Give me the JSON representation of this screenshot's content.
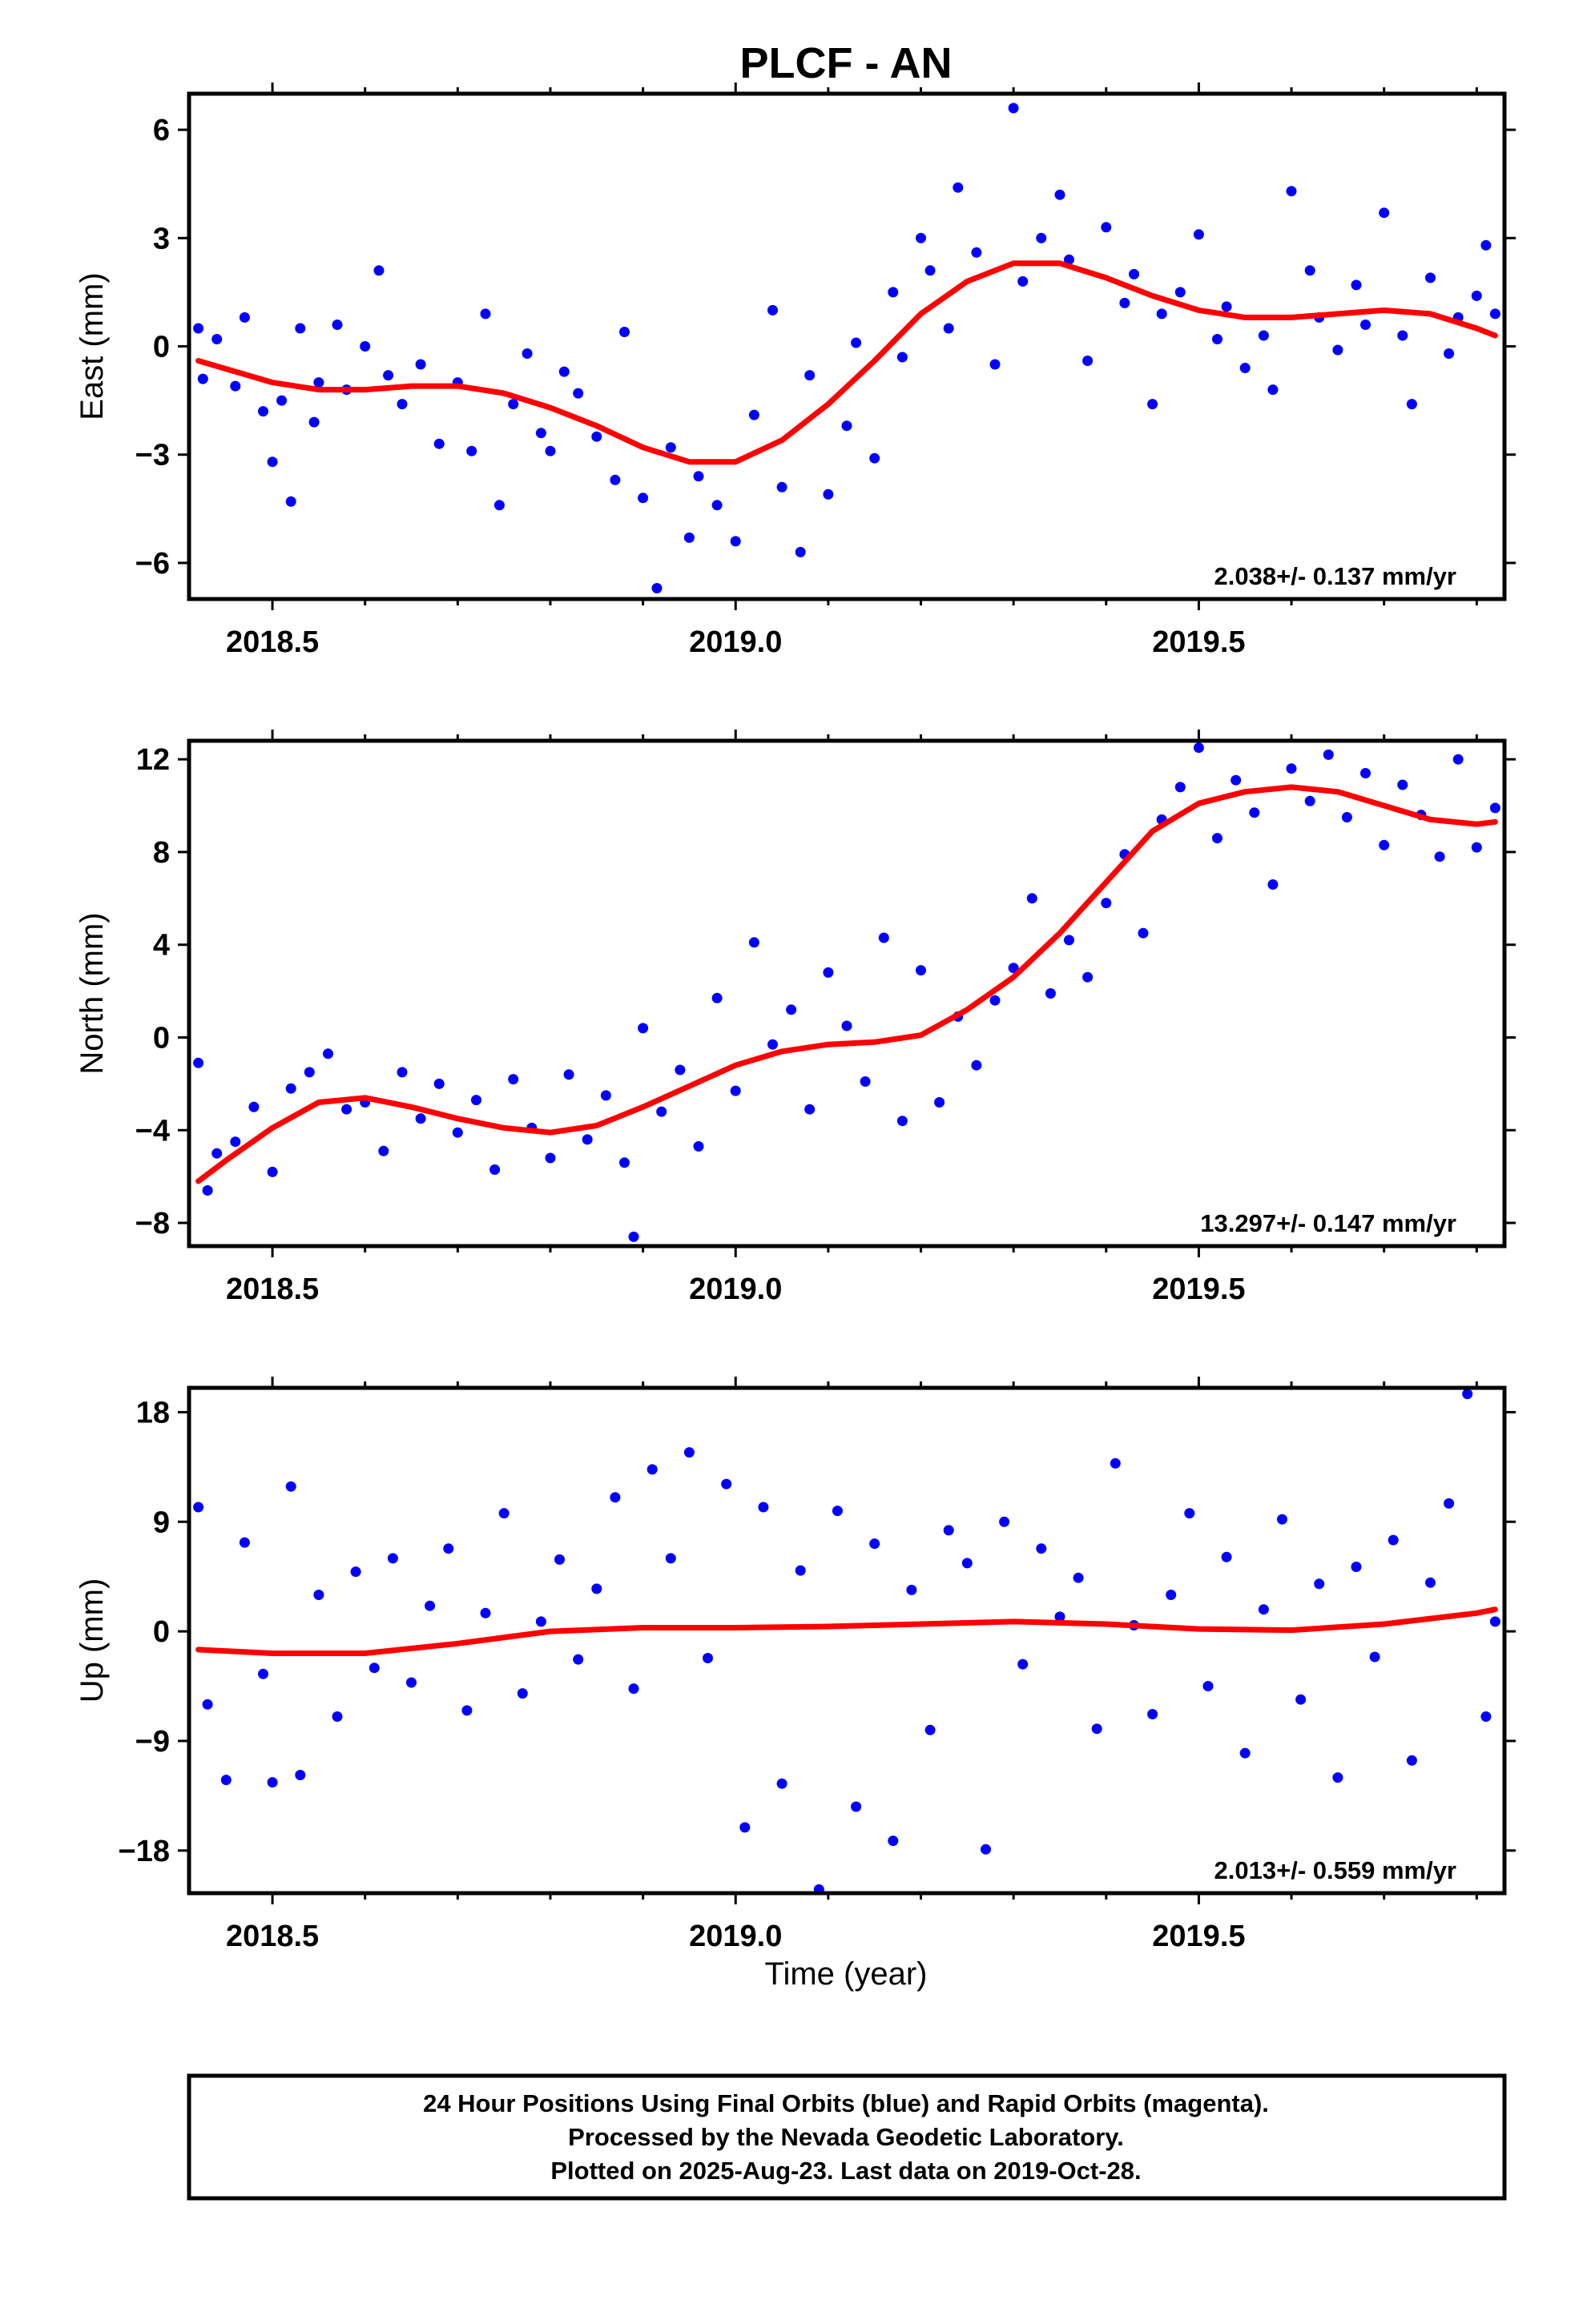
{
  "chart_data": {
    "type": "scatter",
    "title": "PLCF - AN",
    "xlabel": "Time (year)",
    "xlim": [
      2018.41,
      2019.83
    ],
    "x_ticks": [
      "2018.5",
      "2019.0",
      "2019.5"
    ],
    "series_colors": {
      "final_orbits": "#0000ff",
      "fit": "#ff0000"
    },
    "grid": false,
    "panels": [
      {
        "name": "east",
        "ylabel": "East (mm)",
        "ylim": [
          -7.0,
          7.0
        ],
        "y_ticks": [
          "6",
          "3",
          "0",
          "−3",
          "−6"
        ],
        "rate_text": "2.038+/- 0.137 mm/yr",
        "fit": {
          "x": [
            2018.42,
            2018.5,
            2018.55,
            2018.6,
            2018.65,
            2018.7,
            2018.75,
            2018.8,
            2018.85,
            2018.9,
            2018.95,
            2019.0,
            2019.05,
            2019.1,
            2019.15,
            2019.2,
            2019.25,
            2019.3,
            2019.35,
            2019.4,
            2019.45,
            2019.5,
            2019.55,
            2019.6,
            2019.65,
            2019.7,
            2019.75,
            2019.8,
            2019.82
          ],
          "y": [
            -0.4,
            -1.0,
            -1.2,
            -1.2,
            -1.1,
            -1.1,
            -1.3,
            -1.7,
            -2.2,
            -2.8,
            -3.2,
            -3.2,
            -2.6,
            -1.6,
            -0.4,
            0.9,
            1.8,
            2.3,
            2.3,
            1.9,
            1.4,
            1.0,
            0.8,
            0.8,
            0.9,
            1.0,
            0.9,
            0.5,
            0.3
          ]
        },
        "points": {
          "x": [
            2018.42,
            2018.425,
            2018.44,
            2018.46,
            2018.47,
            2018.49,
            2018.5,
            2018.51,
            2018.52,
            2018.53,
            2018.545,
            2018.55,
            2018.57,
            2018.58,
            2018.6,
            2018.615,
            2018.625,
            2018.64,
            2018.66,
            2018.68,
            2018.7,
            2018.715,
            2018.73,
            2018.745,
            2018.76,
            2018.775,
            2018.79,
            2018.8,
            2018.815,
            2018.83,
            2018.85,
            2018.87,
            2018.88,
            2018.9,
            2018.915,
            2018.93,
            2018.95,
            2018.96,
            2018.98,
            2019.0,
            2019.02,
            2019.04,
            2019.05,
            2019.07,
            2019.08,
            2019.1,
            2019.12,
            2019.13,
            2019.15,
            2019.17,
            2019.18,
            2019.2,
            2019.21,
            2019.23,
            2019.24,
            2019.26,
            2019.28,
            2019.3,
            2019.31,
            2019.33,
            2019.35,
            2019.36,
            2019.38,
            2019.4,
            2019.42,
            2019.43,
            2019.45,
            2019.46,
            2019.48,
            2019.5,
            2019.52,
            2019.53,
            2019.55,
            2019.57,
            2019.58,
            2019.6,
            2019.62,
            2019.63,
            2019.65,
            2019.67,
            2019.68,
            2019.7,
            2019.72,
            2019.73,
            2019.75,
            2019.77,
            2019.78,
            2019.8,
            2019.81,
            2019.82
          ],
          "y": [
            0.5,
            -0.9,
            0.2,
            -1.1,
            0.8,
            -1.8,
            -3.2,
            -1.5,
            -4.3,
            0.5,
            -2.1,
            -1.0,
            0.6,
            -1.2,
            0.0,
            2.1,
            -0.8,
            -1.6,
            -0.5,
            -2.7,
            -1.0,
            -2.9,
            0.9,
            -4.4,
            -1.6,
            -0.2,
            -2.4,
            -2.9,
            -0.7,
            -1.3,
            -2.5,
            -3.7,
            0.4,
            -4.2,
            -6.7,
            -2.8,
            -5.3,
            -3.6,
            -4.4,
            -5.4,
            -1.9,
            1.0,
            -3.9,
            -5.7,
            -0.8,
            -4.1,
            -2.2,
            0.1,
            -3.1,
            1.5,
            -0.3,
            3.0,
            2.1,
            0.5,
            4.4,
            2.6,
            -0.5,
            6.6,
            1.8,
            3.0,
            4.2,
            2.4,
            -0.4,
            3.3,
            1.2,
            2.0,
            -1.6,
            0.9,
            1.5,
            3.1,
            0.2,
            1.1,
            -0.6,
            0.3,
            -1.2,
            4.3,
            2.1,
            0.8,
            -0.1,
            1.7,
            0.6,
            3.7,
            0.3,
            -1.6,
            1.9,
            -0.2,
            0.8,
            1.4,
            2.8,
            0.9
          ]
        }
      },
      {
        "name": "north",
        "ylabel": "North (mm)",
        "ylim": [
          -9.0,
          12.8
        ],
        "y_ticks": [
          "12",
          "8",
          "4",
          "0",
          "−4",
          "−8"
        ],
        "rate_text": "13.297+/- 0.147 mm/yr",
        "fit": {
          "x": [
            2018.42,
            2018.45,
            2018.5,
            2018.55,
            2018.6,
            2018.65,
            2018.7,
            2018.75,
            2018.8,
            2018.85,
            2018.9,
            2018.95,
            2019.0,
            2019.05,
            2019.1,
            2019.15,
            2019.2,
            2019.25,
            2019.3,
            2019.35,
            2019.4,
            2019.45,
            2019.5,
            2019.55,
            2019.6,
            2019.65,
            2019.7,
            2019.75,
            2019.8,
            2019.82
          ],
          "y": [
            -6.2,
            -5.3,
            -3.9,
            -2.8,
            -2.6,
            -3.0,
            -3.5,
            -3.9,
            -4.1,
            -3.8,
            -3.0,
            -2.1,
            -1.2,
            -0.6,
            -0.3,
            -0.2,
            0.1,
            1.2,
            2.6,
            4.5,
            6.7,
            8.9,
            10.1,
            10.6,
            10.8,
            10.6,
            10.0,
            9.4,
            9.2,
            9.3
          ]
        },
        "points": {
          "x": [
            2018.42,
            2018.43,
            2018.44,
            2018.46,
            2018.48,
            2018.5,
            2018.52,
            2018.54,
            2018.56,
            2018.58,
            2018.6,
            2018.62,
            2018.64,
            2018.66,
            2018.68,
            2018.7,
            2018.72,
            2018.74,
            2018.76,
            2018.78,
            2018.8,
            2018.82,
            2018.84,
            2018.86,
            2018.88,
            2018.89,
            2018.9,
            2018.92,
            2018.94,
            2018.96,
            2018.98,
            2019.0,
            2019.02,
            2019.04,
            2019.06,
            2019.08,
            2019.1,
            2019.12,
            2019.14,
            2019.16,
            2019.18,
            2019.2,
            2019.22,
            2019.24,
            2019.26,
            2019.28,
            2019.3,
            2019.32,
            2019.34,
            2019.36,
            2019.38,
            2019.4,
            2019.42,
            2019.44,
            2019.46,
            2019.48,
            2019.5,
            2019.52,
            2019.54,
            2019.56,
            2019.58,
            2019.6,
            2019.62,
            2019.64,
            2019.66,
            2019.68,
            2019.7,
            2019.72,
            2019.74,
            2019.76,
            2019.78,
            2019.8,
            2019.82
          ],
          "y": [
            -1.1,
            -6.6,
            -5.0,
            -4.5,
            -3.0,
            -5.8,
            -2.2,
            -1.5,
            -0.7,
            -3.1,
            -2.8,
            -4.9,
            -1.5,
            -3.5,
            -2.0,
            -4.1,
            -2.7,
            -5.7,
            -1.8,
            -3.9,
            -5.2,
            -1.6,
            -4.4,
            -2.5,
            -5.4,
            -8.6,
            0.4,
            -3.2,
            -1.4,
            -4.7,
            1.7,
            -2.3,
            4.1,
            -0.3,
            1.2,
            -3.1,
            2.8,
            0.5,
            -1.9,
            4.3,
            -3.6,
            2.9,
            -2.8,
            0.9,
            -1.2,
            1.6,
            3.0,
            6.0,
            1.9,
            4.2,
            2.6,
            5.8,
            7.9,
            4.5,
            9.4,
            10.8,
            12.5,
            8.6,
            11.1,
            9.7,
            6.6,
            11.6,
            10.2,
            12.2,
            9.5,
            11.4,
            8.3,
            10.9,
            9.6,
            7.8,
            12.0,
            8.2,
            9.9
          ]
        }
      },
      {
        "name": "up",
        "ylabel": "Up (mm)",
        "ylim": [
          -21.5,
          20.0
        ],
        "y_ticks": [
          "18",
          "9",
          "0",
          "−9",
          "−18"
        ],
        "rate_text": "2.013+/- 0.559 mm/yr",
        "fit": {
          "x": [
            2018.42,
            2018.5,
            2018.6,
            2018.7,
            2018.8,
            2018.9,
            2019.0,
            2019.1,
            2019.2,
            2019.3,
            2019.4,
            2019.5,
            2019.6,
            2019.7,
            2019.8,
            2019.82
          ],
          "y": [
            -1.5,
            -1.8,
            -1.8,
            -1.0,
            0.0,
            0.3,
            0.3,
            0.4,
            0.6,
            0.8,
            0.6,
            0.2,
            0.1,
            0.6,
            1.5,
            1.8
          ]
        },
        "points": {
          "x": [
            2018.42,
            2018.43,
            2018.45,
            2018.47,
            2018.49,
            2018.5,
            2018.52,
            2018.53,
            2018.55,
            2018.57,
            2018.59,
            2018.61,
            2018.63,
            2018.65,
            2018.67,
            2018.69,
            2018.71,
            2018.73,
            2018.75,
            2018.77,
            2018.79,
            2018.81,
            2018.83,
            2018.85,
            2018.87,
            2018.89,
            2018.91,
            2018.93,
            2018.95,
            2018.97,
            2018.99,
            2019.01,
            2019.03,
            2019.05,
            2019.07,
            2019.09,
            2019.11,
            2019.13,
            2019.15,
            2019.17,
            2019.19,
            2019.21,
            2019.23,
            2019.25,
            2019.27,
            2019.29,
            2019.31,
            2019.33,
            2019.35,
            2019.37,
            2019.39,
            2019.41,
            2019.43,
            2019.45,
            2019.47,
            2019.49,
            2019.51,
            2019.53,
            2019.55,
            2019.57,
            2019.59,
            2019.61,
            2019.63,
            2019.65,
            2019.67,
            2019.69,
            2019.71,
            2019.73,
            2019.75,
            2019.77,
            2019.79,
            2019.81,
            2019.82
          ],
          "y": [
            10.2,
            -6.0,
            -12.2,
            7.3,
            -3.5,
            -12.4,
            11.9,
            -11.8,
            3.0,
            -7.0,
            4.9,
            -3.0,
            6.0,
            -4.2,
            2.1,
            6.8,
            -6.5,
            1.5,
            9.7,
            -5.1,
            0.8,
            5.9,
            -2.3,
            3.5,
            11.0,
            -4.7,
            13.3,
            6.0,
            14.7,
            -2.2,
            12.1,
            -16.1,
            10.2,
            -12.5,
            5.0,
            -21.2,
            9.9,
            -14.4,
            7.2,
            -17.2,
            3.4,
            -8.1,
            8.3,
            5.6,
            -17.9,
            9.0,
            -2.7,
            6.8,
            1.2,
            4.4,
            -8.0,
            13.8,
            0.5,
            -6.8,
            3.0,
            9.7,
            -4.5,
            6.1,
            -10.0,
            1.8,
            9.2,
            -5.6,
            3.9,
            -12.0,
            5.3,
            -2.1,
            7.5,
            -10.6,
            4.0,
            10.5,
            19.5,
            -7.0,
            0.8
          ]
        }
      }
    ]
  },
  "footer": {
    "line1": "24 Hour Positions Using Final Orbits (blue) and Rapid Orbits (magenta).",
    "line2": "Processed by the Nevada Geodetic Laboratory.",
    "line3": "Plotted on 2025-Aug-23. Last data on 2019-Oct-28."
  }
}
